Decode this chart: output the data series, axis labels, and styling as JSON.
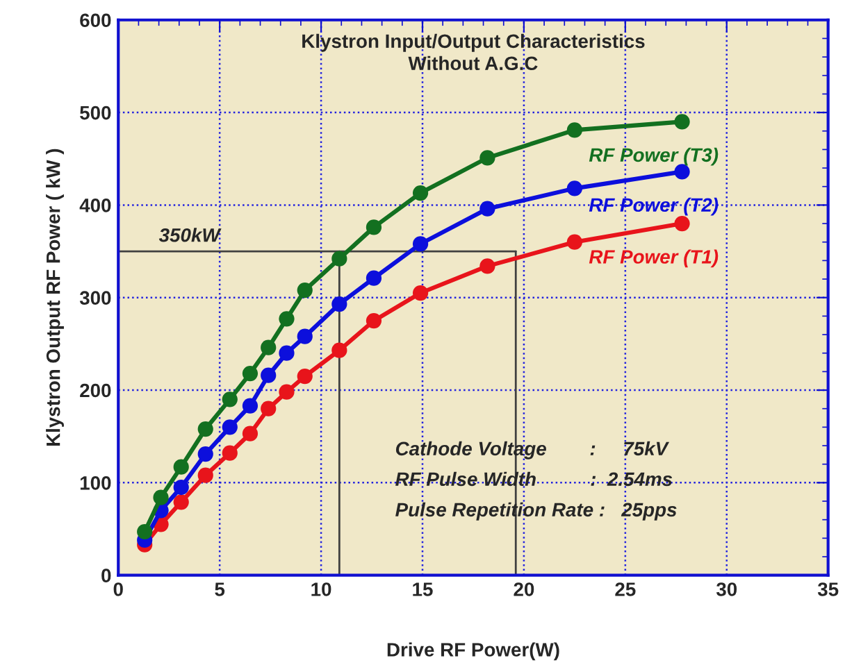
{
  "chart_data": {
    "type": "line",
    "title": "Klystron Input/Output Characteristics\nWithout A.G.C",
    "xlabel": "Drive RF Power(W)",
    "ylabel": "Klystron Output RF Power ( kW )",
    "x": [
      1.3,
      2.1,
      3.1,
      4.3,
      5.5,
      6.5,
      7.4,
      8.3,
      9.2,
      10.9,
      12.6,
      14.9,
      18.2,
      22.5,
      27.8
    ],
    "series": [
      {
        "name": "RF Power (T1)",
        "color": "#e8141b",
        "values": [
          33,
          55,
          79,
          108,
          132,
          153,
          180,
          198,
          215,
          243,
          275,
          305,
          334,
          360,
          380
        ]
      },
      {
        "name": "RF Power (T2)",
        "color": "#0c0fdc",
        "values": [
          38,
          70,
          95,
          131,
          160,
          183,
          216,
          240,
          258,
          293,
          321,
          358,
          396,
          418,
          436
        ]
      },
      {
        "name": "RF Power (T3)",
        "color": "#137020",
        "values": [
          47,
          84,
          117,
          158,
          190,
          218,
          246,
          277,
          308,
          342,
          376,
          413,
          451,
          481,
          490
        ]
      }
    ],
    "xlim": [
      0,
      35
    ],
    "xticks": [
      0,
      5,
      10,
      15,
      20,
      25,
      30,
      35
    ],
    "ylim": [
      0,
      600
    ],
    "yticks": [
      0,
      100,
      200,
      300,
      400,
      500,
      600
    ],
    "ref_lines": [
      {
        "axis": "y",
        "value": 350,
        "label": "350kW",
        "color": "#404040"
      },
      {
        "axis": "x",
        "value": 10.9,
        "color": "#404040"
      },
      {
        "axis": "x",
        "value": 19.6,
        "color": "#404040"
      }
    ],
    "annotations": [
      "Cathode Voltage        :     75kV",
      "RF Pulse Width          :  2.54ms",
      "Pulse Repetition Rate :   25pps"
    ],
    "grid": true,
    "legend": false,
    "marker": "circle",
    "line_style": "solid"
  }
}
